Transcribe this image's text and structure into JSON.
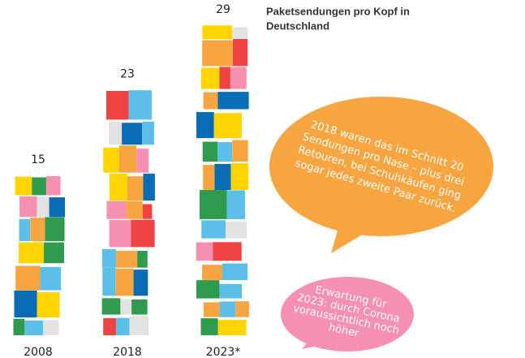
{
  "chart_data": {
    "type": "bar",
    "title": [
      "Paketsendungen pro Kopf in",
      "Deutschland"
    ],
    "categories": [
      "2008",
      "2018",
      "2023*"
    ],
    "values": [
      15,
      23,
      29
    ],
    "colors": [
      "#f7a540",
      "#ef4242",
      "#2e9b4e",
      "#0a6cb4",
      "#5bbfe7",
      "#f590b0",
      "#ffd400",
      "#e2e2e2"
    ],
    "annotations": [
      {
        "lines": [
          "2018 waren das im Schnitt 20",
          "Sendungen pro Nase – plus drei",
          "Retouren, bei Schuhkäufen ging",
          "sogar jedes zweite Paar zurück."
        ],
        "color": "#f7a540"
      },
      {
        "lines": [
          "Erwartung für",
          "2023: durch Corona",
          "voraussichtlich noch",
          "höher"
        ],
        "color": "#f590b0"
      }
    ]
  }
}
